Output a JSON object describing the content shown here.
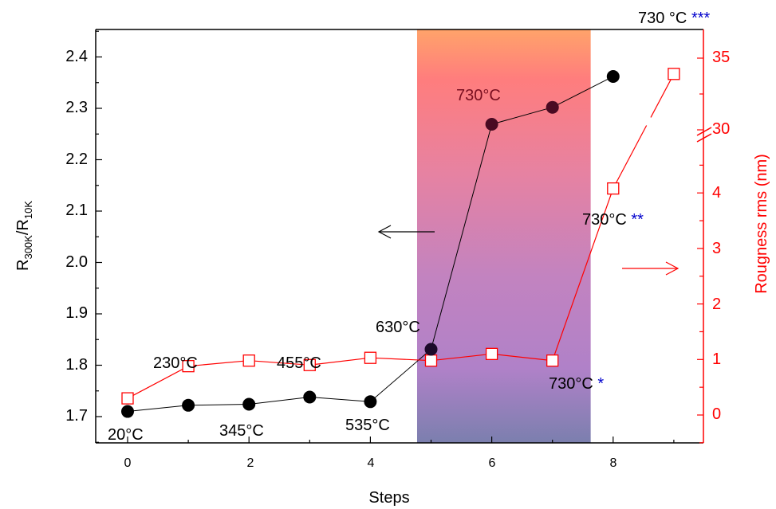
{
  "chart_data": {
    "type": "scatter",
    "x_axis": {
      "label": "Steps",
      "range": [
        -0.5,
        9.5
      ],
      "ticks": [
        0,
        2,
        4,
        6,
        8
      ]
    },
    "left_axis": {
      "label_main": "R",
      "label_sub1": "300K",
      "label_sep": "/R",
      "label_sub2": "10K",
      "range": [
        1.65,
        2.45
      ],
      "ticks": [
        "1.7",
        "1.8",
        "1.9",
        "2.0",
        "2.1",
        "2.2",
        "2.3",
        "2.4"
      ]
    },
    "right_axis": {
      "label": "Rougness rms (nm)",
      "ticks_lower": [
        "0",
        "1",
        "2",
        "3",
        "4"
      ],
      "ticks_upper": [
        "30",
        "35"
      ],
      "break": true
    },
    "series": [
      {
        "marker": "filled-circle",
        "color": "#000000",
        "axis": "left",
        "x": [
          0,
          1,
          2,
          3,
          4,
          5,
          6,
          7,
          8
        ],
        "y": [
          1.71,
          1.722,
          1.724,
          1.738,
          1.729,
          1.831,
          2.269,
          2.302,
          2.362
        ]
      },
      {
        "marker": "open-square",
        "color": "#ff0000",
        "axis": "right",
        "x": [
          0,
          1,
          2,
          3,
          4,
          5,
          6,
          7,
          8,
          9
        ],
        "y": [
          0.3,
          0.88,
          0.98,
          0.9,
          1.03,
          0.98,
          1.1,
          0.98,
          4.08,
          33.9
        ]
      }
    ],
    "annotations": [
      {
        "text": "20°C",
        "color": "#000000"
      },
      {
        "text": "230°C",
        "color": "#000000"
      },
      {
        "text": "345°C",
        "color": "#000000"
      },
      {
        "text": "455°C",
        "color": "#000000"
      },
      {
        "text": "535°C",
        "color": "#000000"
      },
      {
        "text": "630°C",
        "color": "#000000"
      },
      {
        "text": "730°C",
        "color": "#7a0f20"
      },
      {
        "text": "730°C",
        "color": "#000000",
        "stars": "*"
      },
      {
        "text": "730°C",
        "color": "#000000",
        "stars": "**"
      },
      {
        "text": "730 °C",
        "color": "#000000",
        "stars": "***"
      }
    ],
    "star_color": "#0000cc",
    "shaded_region": {
      "x": [
        4.77,
        7.63
      ],
      "gradient": [
        "#ff9a6a",
        "#ff7f7f",
        "#e07fa8",
        "#b684c6",
        "#7a7eb0"
      ]
    },
    "grid": false
  }
}
